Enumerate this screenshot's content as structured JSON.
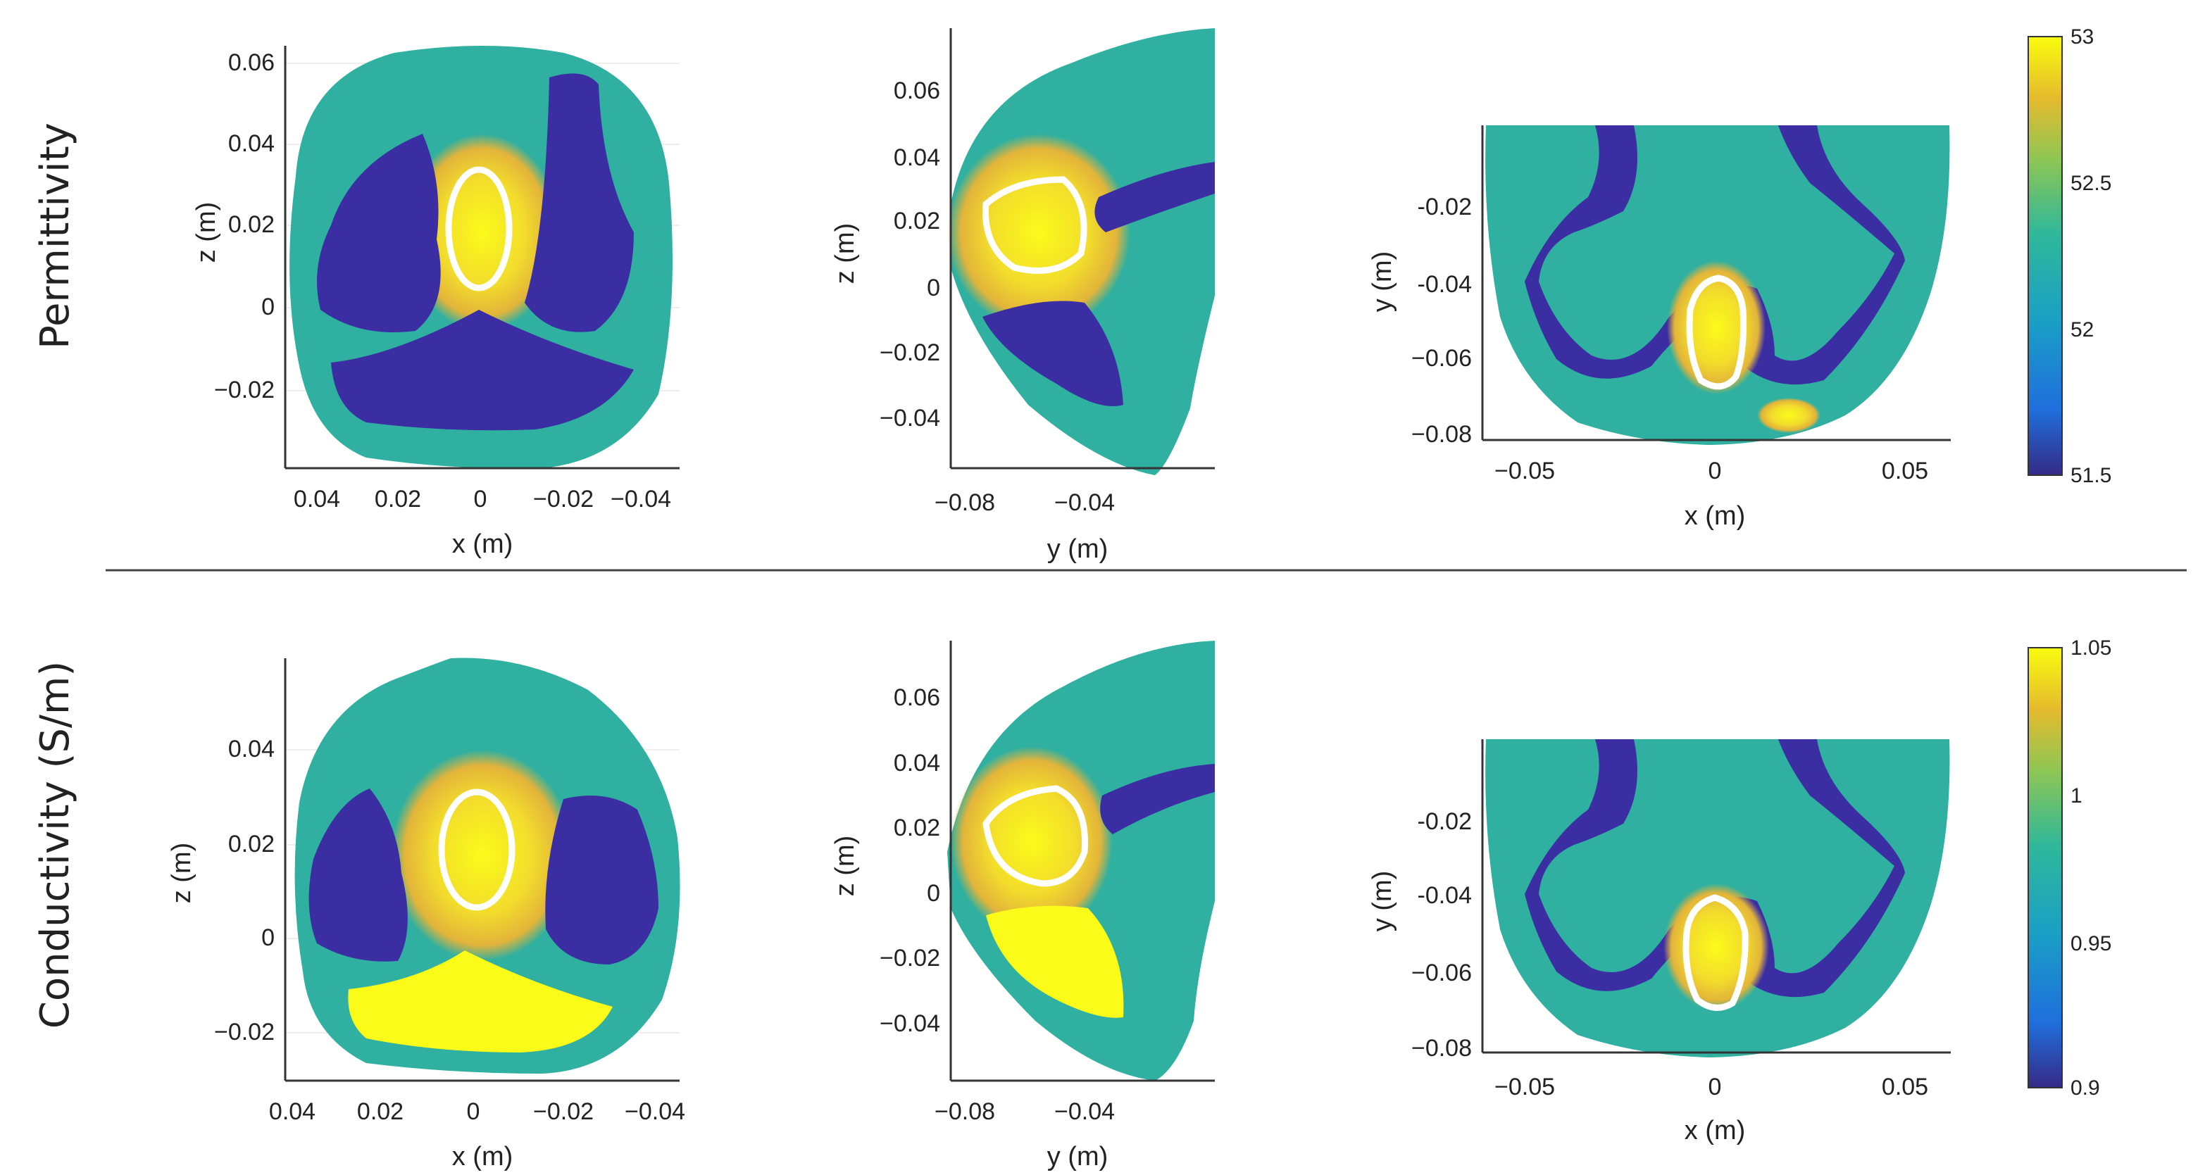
{
  "colors": {
    "low": "#3b2ea3",
    "mid": "#2aa69b",
    "mid_light": "#5bc28b",
    "high": "#f0d52a",
    "peak": "#fbfb1a",
    "contour": "#ffffff",
    "axis": "#333333"
  },
  "rows": [
    {
      "label": "Permittivity",
      "colorbar": {
        "ticks": [
          "53",
          "52.5",
          "52",
          "51.5"
        ],
        "range": [
          51.5,
          53
        ]
      },
      "panels": [
        {
          "xlabel": "x (m)",
          "ylabel": "z (m)",
          "xticks": [
            "0.04",
            "0.02",
            "0",
            "−0.02",
            "−0.04"
          ],
          "yticks": [
            "0.06",
            "0.04",
            "0.02",
            "0",
            "−0.02"
          ]
        },
        {
          "xlabel": "y (m)",
          "ylabel": "z (m)",
          "xticks": [
            "−0.08",
            "−0.04"
          ],
          "yticks": [
            "0.06",
            "0.04",
            "0.02",
            "0",
            "−0.02",
            "−0.04"
          ]
        },
        {
          "xlabel": "x (m)",
          "ylabel": "y (m)",
          "xticks": [
            "−0.05",
            "0",
            "0.05"
          ],
          "yticks": [
            "-0.02",
            "-0.04",
            "−0.06",
            "−0.08"
          ]
        }
      ]
    },
    {
      "label": "Conductivity (S/m)",
      "colorbar": {
        "ticks": [
          "1.05",
          "1",
          "0.95",
          "0.9"
        ],
        "range": [
          0.9,
          1.05
        ]
      },
      "panels": [
        {
          "xlabel": "x (m)",
          "ylabel": "z (m)",
          "xticks": [
            "0.04",
            "0.02",
            "0",
            "−0.02",
            "−0.04"
          ],
          "yticks": [
            "0.04",
            "0.02",
            "0",
            "−0.02"
          ]
        },
        {
          "xlabel": "y (m)",
          "ylabel": "z (m)",
          "xticks": [
            "−0.08",
            "−0.04"
          ],
          "yticks": [
            "0.06",
            "0.04",
            "0.02",
            "0",
            "−0.02",
            "−0.04"
          ]
        },
        {
          "xlabel": "x (m)",
          "ylabel": "y (m)",
          "xticks": [
            "−0.05",
            "0",
            "0.05"
          ],
          "yticks": [
            "-0.02",
            "-0.04",
            "−0.06",
            "−0.08"
          ]
        }
      ]
    }
  ]
}
